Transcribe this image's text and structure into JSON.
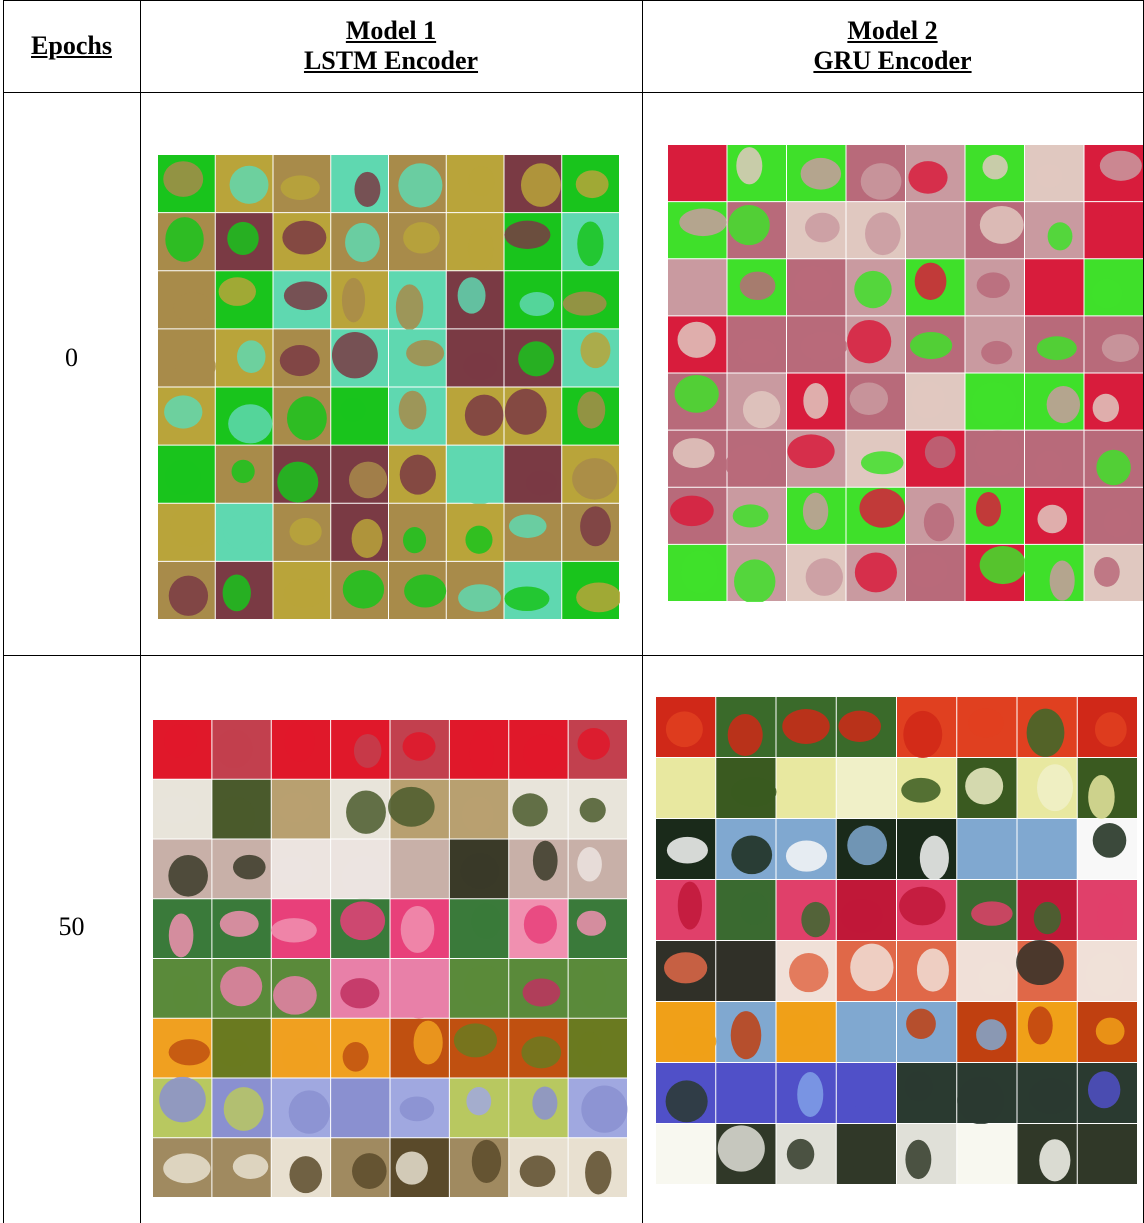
{
  "header": {
    "epochs": "Epochs",
    "models": [
      {
        "name": "Model 1",
        "encoder": "LSTM Encoder"
      },
      {
        "name": "Model 2",
        "encoder": "GRU Encoder"
      }
    ]
  },
  "rows": [
    {
      "epochs": "0"
    },
    {
      "epochs": "50"
    }
  ]
}
